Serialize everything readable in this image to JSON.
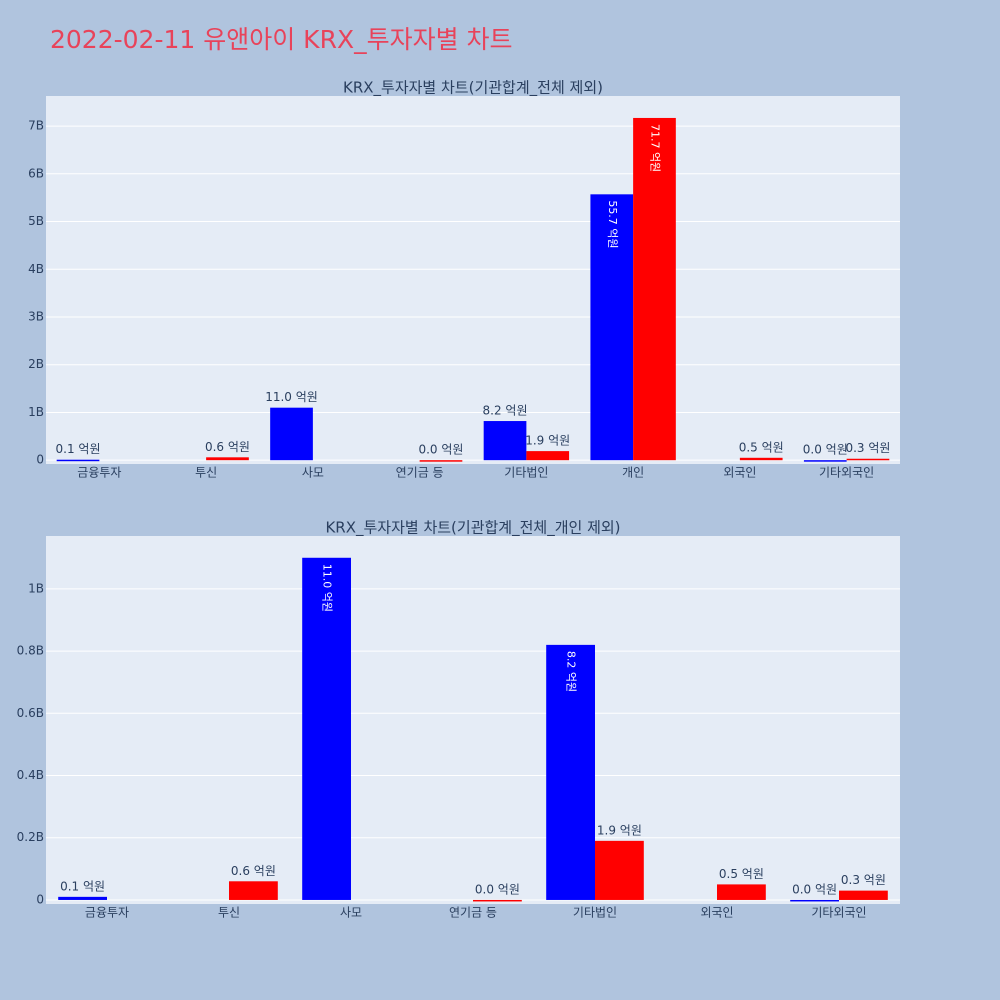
{
  "title": "2022-02-11 유앤아이 KRX_투자자별 차트",
  "chart_data": [
    {
      "type": "bar",
      "title": "KRX_투자자별 차트(기관합계_전체 제외)",
      "categories": [
        "금융투자",
        "투신",
        "사모",
        "연기금 등",
        "기타법인",
        "개인",
        "외국인",
        "기타외국인"
      ],
      "series": [
        {
          "color": "#0000ff",
          "values": [
            10000000,
            null,
            1100000000,
            null,
            820000000,
            5570000000,
            null,
            0
          ],
          "value_labels": [
            "0.1 억원",
            null,
            "11.0 억원",
            null,
            "8.2 억원",
            "55.7 억원",
            null,
            "0.0 억원"
          ]
        },
        {
          "color": "#ff0000",
          "values": [
            null,
            60000000,
            null,
            0,
            190000000,
            7170000000,
            50000000,
            30000000
          ],
          "value_labels": [
            null,
            "0.6 억원",
            null,
            "0.0 억원",
            "1.9 억원",
            "71.7 억원",
            "0.5 억원",
            "0.3 억원"
          ]
        }
      ],
      "ylim": [
        -80000000,
        7630000000
      ],
      "yticks": [
        0,
        {
          "value": 1000000000,
          "label": "1B"
        },
        {
          "value": 2000000000,
          "label": "2B"
        },
        {
          "value": 3000000000,
          "label": "3B"
        },
        {
          "value": 4000000000,
          "label": "4B"
        },
        {
          "value": 5000000000,
          "label": "5B"
        },
        {
          "value": 6000000000,
          "label": "6B"
        },
        {
          "value": 7000000000,
          "label": "7B"
        }
      ],
      "grid": true
    },
    {
      "type": "bar",
      "title": "KRX_투자자별 차트(기관합계_전체_개인 제외)",
      "categories": [
        "금융투자",
        "투신",
        "사모",
        "연기금 등",
        "기타법인",
        "외국인",
        "기타외국인"
      ],
      "series": [
        {
          "color": "#0000ff",
          "values": [
            10000000,
            null,
            1100000000,
            null,
            820000000,
            null,
            0
          ],
          "value_labels": [
            "0.1 억원",
            null,
            "11.0 억원",
            null,
            "8.2 억원",
            null,
            "0.0 억원"
          ]
        },
        {
          "color": "#ff0000",
          "values": [
            null,
            60000000,
            null,
            0,
            190000000,
            50000000,
            30000000
          ],
          "value_labels": [
            null,
            "0.6 억원",
            null,
            "0.0 억원",
            "1.9 억원",
            "0.5 억원",
            "0.3 억원"
          ]
        }
      ],
      "ylim": [
        -13000000,
        1170000000
      ],
      "yticks": [
        0,
        {
          "value": 200000000,
          "label": "0.2B"
        },
        {
          "value": 400000000,
          "label": "0.4B"
        },
        {
          "value": 600000000,
          "label": "0.6B"
        },
        {
          "value": 800000000,
          "label": "0.8B"
        },
        {
          "value": 1000000000,
          "label": "1B"
        }
      ],
      "grid": true
    }
  ]
}
